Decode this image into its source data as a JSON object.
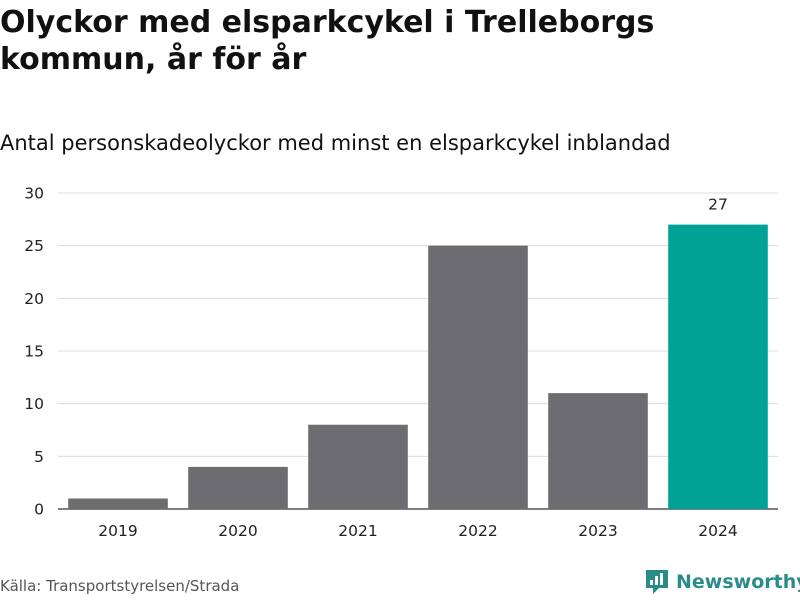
{
  "title": "Olyckor med elsparkcykel i Trelleborgs kommun, år för år",
  "subtitle": "Antal personskadeolyckor med minst en elsparkcykel inblandad",
  "source": "Källa: Transportstyrelsen/Strada",
  "logo_text": "Newsworthy",
  "colors": {
    "bar": "#6d6c70",
    "highlight": "#00a296",
    "grid": "#dcdcdc",
    "logo": "#2a8c8a"
  },
  "chart_data": {
    "type": "bar",
    "categories": [
      "2019",
      "2020",
      "2021",
      "2022",
      "2023",
      "2024"
    ],
    "values": [
      1,
      4,
      8,
      25,
      11,
      27
    ],
    "highlight_index": 5,
    "data_labels": [
      null,
      null,
      null,
      null,
      null,
      "27"
    ],
    "ylim": [
      0,
      30
    ],
    "yticks": [
      0,
      5,
      10,
      15,
      20,
      25,
      30
    ],
    "grid": true,
    "xlabel": "",
    "ylabel": ""
  }
}
